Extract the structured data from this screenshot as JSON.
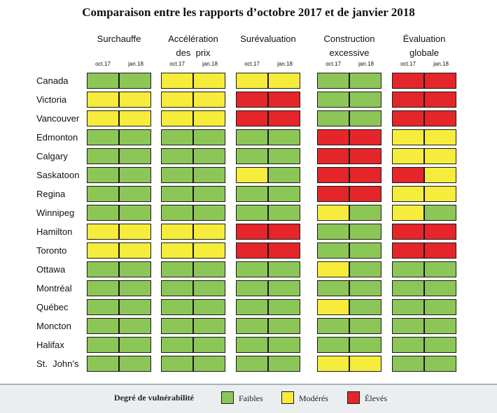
{
  "chart_data": {
    "type": "table",
    "title": "Comparaison entre les rapports d’octobre 2017 et de janvier 2018",
    "categories": [
      {
        "name": "Surchauffe",
        "lines": [
          "Surchauffe"
        ]
      },
      {
        "name": "Accélération des prix",
        "lines": [
          "Accélération",
          "des  prix"
        ]
      },
      {
        "name": "Surévaluation",
        "lines": [
          "Surévaluation"
        ]
      },
      {
        "name": "Construction excessive",
        "lines": [
          "Construction",
          "excessive"
        ]
      },
      {
        "name": "Évaluation globale",
        "lines": [
          "Évaluation",
          "globale"
        ]
      }
    ],
    "periods": [
      "oct.17",
      "jan.18"
    ],
    "cities": [
      "Canada",
      "Victoria",
      "Vancouver",
      "Edmonton",
      "Calgary",
      "Saskatoon",
      "Regina",
      "Winnipeg",
      "Hamilton",
      "Toronto",
      "Ottawa",
      "Montréal",
      "Québec",
      "Moncton",
      "Halifax",
      "St.  John’s"
    ],
    "values": [
      [
        "F",
        "F",
        "M",
        "M",
        "M",
        "M",
        "F",
        "F",
        "E",
        "E"
      ],
      [
        "M",
        "M",
        "M",
        "M",
        "E",
        "E",
        "F",
        "F",
        "E",
        "E"
      ],
      [
        "M",
        "M",
        "M",
        "M",
        "E",
        "E",
        "F",
        "F",
        "E",
        "E"
      ],
      [
        "F",
        "F",
        "F",
        "F",
        "F",
        "F",
        "E",
        "E",
        "M",
        "M"
      ],
      [
        "F",
        "F",
        "F",
        "F",
        "F",
        "F",
        "E",
        "E",
        "M",
        "M"
      ],
      [
        "F",
        "F",
        "F",
        "F",
        "M",
        "F",
        "E",
        "E",
        "E",
        "M"
      ],
      [
        "F",
        "F",
        "F",
        "F",
        "F",
        "F",
        "E",
        "E",
        "M",
        "M"
      ],
      [
        "F",
        "F",
        "F",
        "F",
        "F",
        "F",
        "M",
        "F",
        "M",
        "F"
      ],
      [
        "M",
        "M",
        "M",
        "M",
        "E",
        "E",
        "F",
        "F",
        "E",
        "E"
      ],
      [
        "M",
        "M",
        "M",
        "M",
        "E",
        "E",
        "F",
        "F",
        "E",
        "E"
      ],
      [
        "F",
        "F",
        "F",
        "F",
        "F",
        "F",
        "M",
        "F",
        "F",
        "F"
      ],
      [
        "F",
        "F",
        "F",
        "F",
        "F",
        "F",
        "F",
        "F",
        "F",
        "F"
      ],
      [
        "F",
        "F",
        "F",
        "F",
        "F",
        "F",
        "M",
        "F",
        "F",
        "F"
      ],
      [
        "F",
        "F",
        "F",
        "F",
        "F",
        "F",
        "F",
        "F",
        "F",
        "F"
      ],
      [
        "F",
        "F",
        "F",
        "F",
        "F",
        "F",
        "F",
        "F",
        "F",
        "F"
      ],
      [
        "F",
        "F",
        "F",
        "F",
        "F",
        "F",
        "M",
        "M",
        "F",
        "F"
      ]
    ],
    "legend": {
      "title": "Degré de vulnérabilité",
      "items": [
        {
          "key": "F",
          "label": "Faibles",
          "color": "#8cc657"
        },
        {
          "key": "M",
          "label": "Modérés",
          "color": "#f6ec3b"
        },
        {
          "key": "E",
          "label": "Élevés",
          "color": "#e4262a"
        }
      ]
    }
  }
}
